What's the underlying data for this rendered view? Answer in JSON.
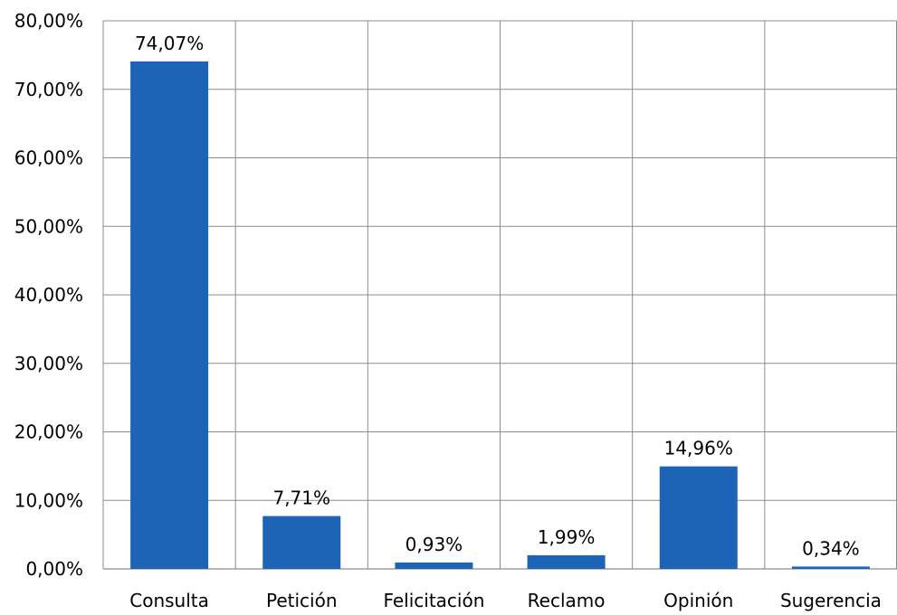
{
  "chart_data": {
    "type": "bar",
    "categories": [
      "Consulta",
      "Petición",
      "Felicitación",
      "Reclamo",
      "Opinión",
      "Sugerencia"
    ],
    "values": [
      74.07,
      7.71,
      0.93,
      1.99,
      14.96,
      0.34
    ],
    "data_labels": [
      "74,07%",
      "7,71%",
      "0,93%",
      "1,99%",
      "14,96%",
      "0,34%"
    ],
    "y_ticks": [
      0,
      10,
      20,
      30,
      40,
      50,
      60,
      70,
      80
    ],
    "y_tick_labels": [
      "0,00%",
      "10,00%",
      "20,00%",
      "30,00%",
      "40,00%",
      "50,00%",
      "60,00%",
      "70,00%",
      "80,00%"
    ],
    "ylim": [
      0,
      80
    ],
    "title": "",
    "xlabel": "",
    "ylabel": "",
    "grid": true,
    "legend": "none",
    "colors": {
      "bar": "#1d64b6",
      "grid": "#8c8c8c",
      "text": "#000000"
    }
  }
}
